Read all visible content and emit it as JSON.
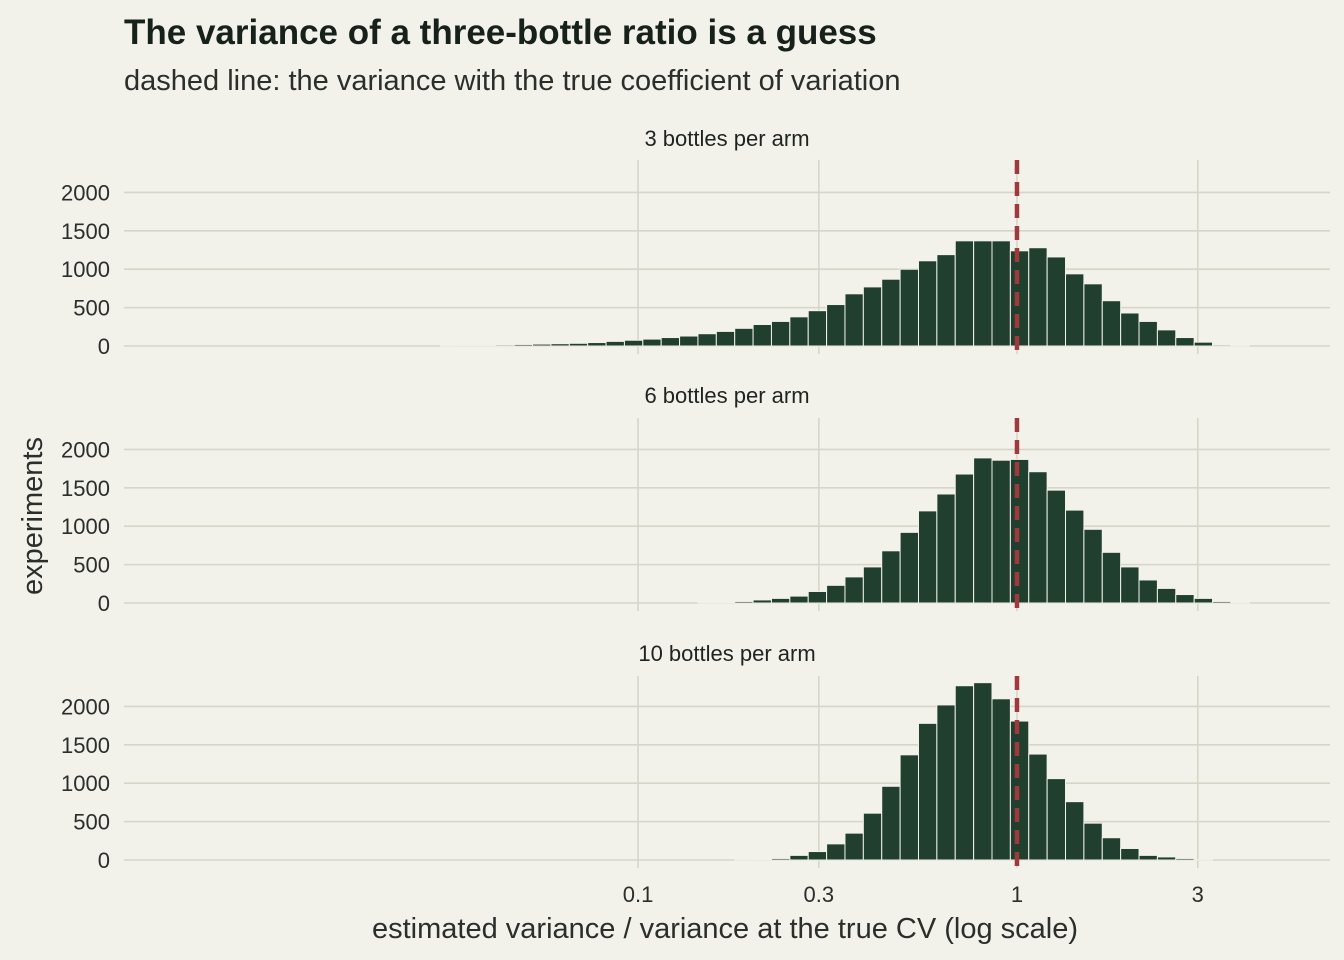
{
  "chart_data": {
    "type": "bar",
    "title": "The variance of a three-bottle ratio is a guess",
    "subtitle": "dashed line: the variance with the true coefficient of variation",
    "xlabel": "estimated variance / variance at the true CV (log scale)",
    "ylabel": "experiments",
    "x_scale": "log10",
    "x_ticks": [
      {
        "value": 0.1,
        "label": "0.1"
      },
      {
        "value": 0.3,
        "label": "0.3"
      },
      {
        "value": 1,
        "label": "1"
      },
      {
        "value": 3,
        "label": "3"
      }
    ],
    "y_ticks": [
      0,
      500,
      1000,
      1500,
      2000
    ],
    "ylim": [
      0,
      2400
    ],
    "xlim": [
      0.0044,
      6.7
    ],
    "reference_line": {
      "x": 1,
      "style": "dashed",
      "color": "#a0393c"
    },
    "bar_color": "#213f2e",
    "bins_log10_left": [
      -2.3454,
      -2.2969,
      -2.2484,
      -2.1999,
      -2.1514,
      -2.1029,
      -2.0544,
      -2.0059,
      -1.9574,
      -1.9089,
      -1.8604,
      -1.8119,
      -1.7634,
      -1.7149,
      -1.6664,
      -1.6179,
      -1.5694,
      -1.5209,
      -1.4724,
      -1.4239,
      -1.3754,
      -1.3269,
      -1.2784,
      -1.2299,
      -1.1814,
      -1.1329,
      -1.0844,
      -1.0359,
      -0.9874,
      -0.9389,
      -0.8904,
      -0.8419,
      -0.7934,
      -0.7449,
      -0.6964,
      -0.6479,
      -0.5994,
      -0.5509,
      -0.5024,
      -0.4539,
      -0.4054,
      -0.3569,
      -0.3084,
      -0.2599,
      -0.2114,
      -0.1629,
      -0.1144,
      -0.0659,
      -0.0174,
      0.0311,
      0.0796,
      0.1281,
      0.1766,
      0.2251,
      0.2736,
      0.3221,
      0.3706,
      0.4191,
      0.4676,
      0.5161,
      0.5646,
      0.6131,
      0.6616,
      0.7101,
      0.7586,
      0.8071
    ],
    "bin_width_log10": 0.0485,
    "series": [
      {
        "label": "3 bottles per arm",
        "values": [
          0,
          0,
          0,
          0,
          0,
          0,
          0,
          0,
          0,
          0,
          0,
          0,
          0,
          0,
          0,
          0,
          0,
          5,
          8,
          10,
          15,
          20,
          25,
          30,
          35,
          45,
          60,
          75,
          90,
          110,
          130,
          160,
          190,
          230,
          280,
          320,
          380,
          460,
          540,
          680,
          770,
          870,
          1000,
          1110,
          1190,
          1370,
          1370,
          1370,
          1240,
          1280,
          1160,
          940,
          810,
          590,
          430,
          320,
          210,
          110,
          50,
          15,
          5,
          0,
          0,
          0,
          0,
          0
        ]
      },
      {
        "label": "6 bottles per arm",
        "values": [
          0,
          0,
          0,
          0,
          0,
          0,
          0,
          0,
          0,
          0,
          0,
          0,
          0,
          0,
          0,
          0,
          0,
          0,
          0,
          0,
          0,
          0,
          0,
          0,
          0,
          0,
          0,
          0,
          0,
          0,
          0,
          5,
          10,
          20,
          40,
          60,
          90,
          150,
          230,
          340,
          470,
          680,
          920,
          1200,
          1420,
          1680,
          1890,
          1860,
          1870,
          1710,
          1470,
          1210,
          960,
          660,
          470,
          300,
          190,
          110,
          60,
          20,
          10,
          0,
          0,
          0,
          0,
          0
        ]
      },
      {
        "label": "10 bottles per arm",
        "values": [
          0,
          0,
          0,
          0,
          0,
          0,
          0,
          0,
          0,
          0,
          0,
          0,
          0,
          0,
          0,
          0,
          0,
          0,
          0,
          0,
          0,
          0,
          0,
          0,
          0,
          0,
          0,
          0,
          0,
          0,
          0,
          0,
          0,
          5,
          10,
          20,
          60,
          110,
          210,
          350,
          610,
          960,
          1370,
          1780,
          2020,
          2270,
          2310,
          2100,
          1810,
          1380,
          1060,
          760,
          480,
          290,
          150,
          60,
          40,
          20,
          5,
          0,
          0,
          0,
          0,
          0,
          0,
          0
        ]
      }
    ]
  }
}
